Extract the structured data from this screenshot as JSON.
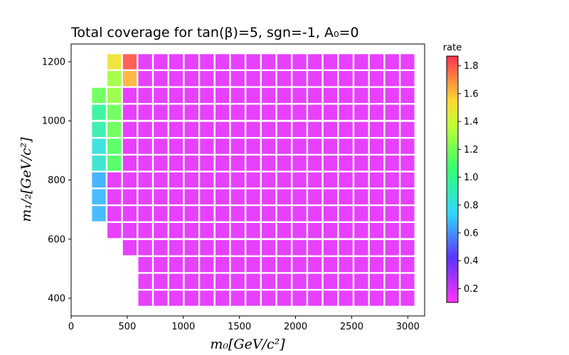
{
  "chart_data": {
    "type": "heatmap",
    "title": "Total coverage for tan(β)=5, sgn=-1, A₀=0",
    "xlabel": "m₀[GeV/c²]",
    "ylabel": "m₁/₂[GeV/c²]",
    "xlim": [
      0,
      3150
    ],
    "ylim": [
      340,
      1260
    ],
    "xticks": [
      0,
      500,
      1000,
      1500,
      2000,
      2500,
      3000
    ],
    "yticks": [
      400,
      600,
      800,
      1000,
      1200
    ],
    "cell_size": {
      "dx": 137.5,
      "dy": 57.1
    },
    "colorbar": {
      "label": "rate",
      "range": [
        0.1,
        1.87
      ],
      "ticks": [
        0.2,
        0.4,
        0.6,
        0.8,
        1.0,
        1.2,
        1.4,
        1.6,
        1.8
      ],
      "colormap": "gist_rainbow_r"
    },
    "rows": [
      {
        "y": 400,
        "x_start": 660,
        "n": 18,
        "value": 0.15
      },
      {
        "y": 457,
        "x_start": 660,
        "n": 18,
        "value": 0.15
      },
      {
        "y": 514,
        "x_start": 660,
        "n": 18,
        "value": 0.15
      },
      {
        "y": 571,
        "x_start": 522.5,
        "n": 19,
        "value": 0.15
      },
      {
        "y": 629,
        "x_start": 385,
        "n": 20,
        "value": 0.15
      },
      {
        "y": 686,
        "x_start": 385,
        "n": 20,
        "value": 0.15
      },
      {
        "y": 743,
        "x_start": 385,
        "n": 20,
        "value": 0.15
      },
      {
        "y": 800,
        "x_start": 385,
        "n": 20,
        "value": 0.15
      },
      {
        "y": 857,
        "x_start": 522.5,
        "n": 19,
        "value": 0.15
      },
      {
        "y": 914,
        "x_start": 522.5,
        "n": 19,
        "value": 0.15
      },
      {
        "y": 971,
        "x_start": 522.5,
        "n": 19,
        "value": 0.15
      },
      {
        "y": 1029,
        "x_start": 522.5,
        "n": 19,
        "value": 0.15
      },
      {
        "y": 1086,
        "x_start": 522.5,
        "n": 19,
        "value": 0.15
      },
      {
        "y": 1143,
        "x_start": 660,
        "n": 18,
        "value": 0.15
      },
      {
        "y": 1200,
        "x_start": 660,
        "n": 18,
        "value": 0.15
      }
    ],
    "cells": [
      {
        "x": 247.5,
        "y": 686,
        "value": 0.68
      },
      {
        "x": 247.5,
        "y": 743,
        "value": 0.68
      },
      {
        "x": 247.5,
        "y": 800,
        "value": 0.66
      },
      {
        "x": 247.5,
        "y": 857,
        "value": 0.85
      },
      {
        "x": 247.5,
        "y": 914,
        "value": 0.82
      },
      {
        "x": 247.5,
        "y": 971,
        "value": 0.92
      },
      {
        "x": 247.5,
        "y": 1029,
        "value": 0.96
      },
      {
        "x": 247.5,
        "y": 1086,
        "value": 1.18
      },
      {
        "x": 385,
        "y": 857,
        "value": 1.12
      },
      {
        "x": 385,
        "y": 914,
        "value": 1.13
      },
      {
        "x": 385,
        "y": 971,
        "value": 1.18
      },
      {
        "x": 385,
        "y": 1029,
        "value": 1.18
      },
      {
        "x": 385,
        "y": 1086,
        "value": 1.28
      },
      {
        "x": 385,
        "y": 1143,
        "value": 1.3
      },
      {
        "x": 385,
        "y": 1200,
        "value": 1.5
      },
      {
        "x": 522.5,
        "y": 1143,
        "value": 1.62
      },
      {
        "x": 522.5,
        "y": 1200,
        "value": 1.8
      }
    ]
  }
}
